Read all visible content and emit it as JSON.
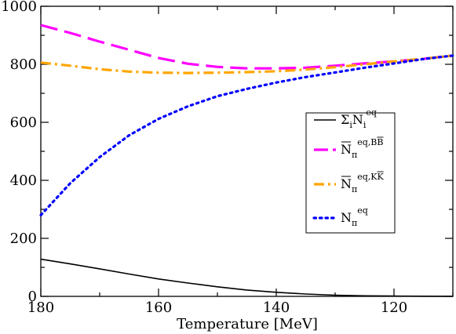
{
  "chart_data": {
    "type": "line",
    "xlabel": "Temperature [MeV]",
    "ylabel": "",
    "xlim": [
      180,
      110
    ],
    "ylim": [
      0,
      1000
    ],
    "x_reversed": true,
    "x_ticks": [
      180,
      160,
      140,
      120
    ],
    "y_ticks": [
      0,
      200,
      400,
      600,
      800,
      1000
    ],
    "grid": false,
    "legend_position": "center-right",
    "series": [
      {
        "key": "sum",
        "legend_main": "Σ",
        "legend_parts": [
          [
            "i",
            "sub"
          ],
          [
            "N",
            "main"
          ],
          [
            "i",
            "sub"
          ],
          [
            "eq",
            "sup"
          ]
        ],
        "color": "#000000",
        "style": "solid",
        "x": [
          180,
          175,
          170,
          165,
          160,
          155,
          150,
          145,
          140,
          135,
          130,
          125,
          120,
          115,
          110
        ],
        "y": [
          128,
          112,
          95,
          77,
          60,
          46,
          33,
          22,
          14,
          8,
          4,
          2,
          1,
          0.5,
          0.2
        ]
      },
      {
        "key": "bbbar",
        "legend_parts": [
          [
            "N",
            "main-bar"
          ],
          [
            "π",
            "sub"
          ],
          [
            "eq,BB",
            "sup-bar"
          ]
        ],
        "color": "#ff00ff",
        "style": "longdash",
        "x": [
          180,
          175,
          170,
          165,
          160,
          155,
          150,
          145,
          140,
          135,
          130,
          125,
          120,
          115,
          110
        ],
        "y": [
          935,
          908,
          878,
          850,
          822,
          802,
          791,
          786,
          786,
          788,
          795,
          803,
          810,
          819,
          830
        ]
      },
      {
        "key": "kkbar",
        "legend_parts": [
          [
            "N",
            "main-bar"
          ],
          [
            "π",
            "sub"
          ],
          [
            "eq,KK",
            "sup-bar"
          ]
        ],
        "color": "#ffa500",
        "style": "dashdot",
        "x": [
          180,
          175,
          170,
          165,
          160,
          155,
          150,
          145,
          140,
          135,
          130,
          125,
          120,
          115,
          110
        ],
        "y": [
          806,
          795,
          783,
          775,
          771,
          770,
          771,
          773,
          776,
          782,
          790,
          800,
          810,
          819,
          830
        ]
      },
      {
        "key": "pi",
        "legend_parts": [
          [
            "N",
            "main"
          ],
          [
            "π",
            "sub"
          ],
          [
            "eq",
            "sup"
          ]
        ],
        "color": "#0000ff",
        "style": "dotted",
        "x": [
          180,
          175,
          170,
          165,
          160,
          155,
          150,
          145,
          140,
          135,
          130,
          125,
          120,
          115,
          110
        ],
        "y": [
          280,
          390,
          480,
          555,
          612,
          655,
          690,
          715,
          737,
          756,
          772,
          788,
          803,
          818,
          830
        ]
      }
    ]
  }
}
